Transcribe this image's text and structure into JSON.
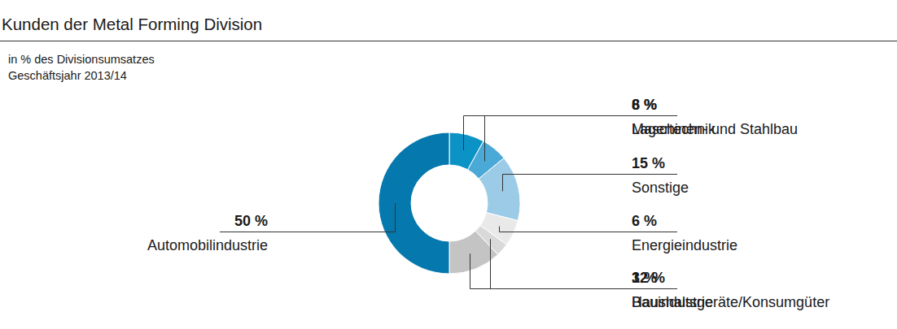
{
  "chart_data": {
    "type": "donut",
    "title": "Kunden der Metal Forming Division",
    "subtitle": [
      "in % des Divisionsumsatzes",
      "Geschäftsjahr 2013/14"
    ],
    "categories": [
      "Lagertechnik",
      "Maschinen- und Stahlbau",
      "Sonstige",
      "Energieindustrie",
      "Haushaltsgeräte/Konsumgüter",
      "Bauindustrie",
      "Automobilindustrie"
    ],
    "values": [
      8,
      6,
      15,
      6,
      3,
      12,
      50
    ],
    "value_labels": [
      "8 %",
      "6 %",
      "15 %",
      "6 %",
      "3 %",
      "12 %",
      "50 %"
    ],
    "colors": [
      "#0c93c6",
      "#4aa9d6",
      "#9bcbe6",
      "#e9e9e9",
      "#d9d9d9",
      "#c4c4c4",
      "#0579ad"
    ],
    "data_labels": true
  }
}
